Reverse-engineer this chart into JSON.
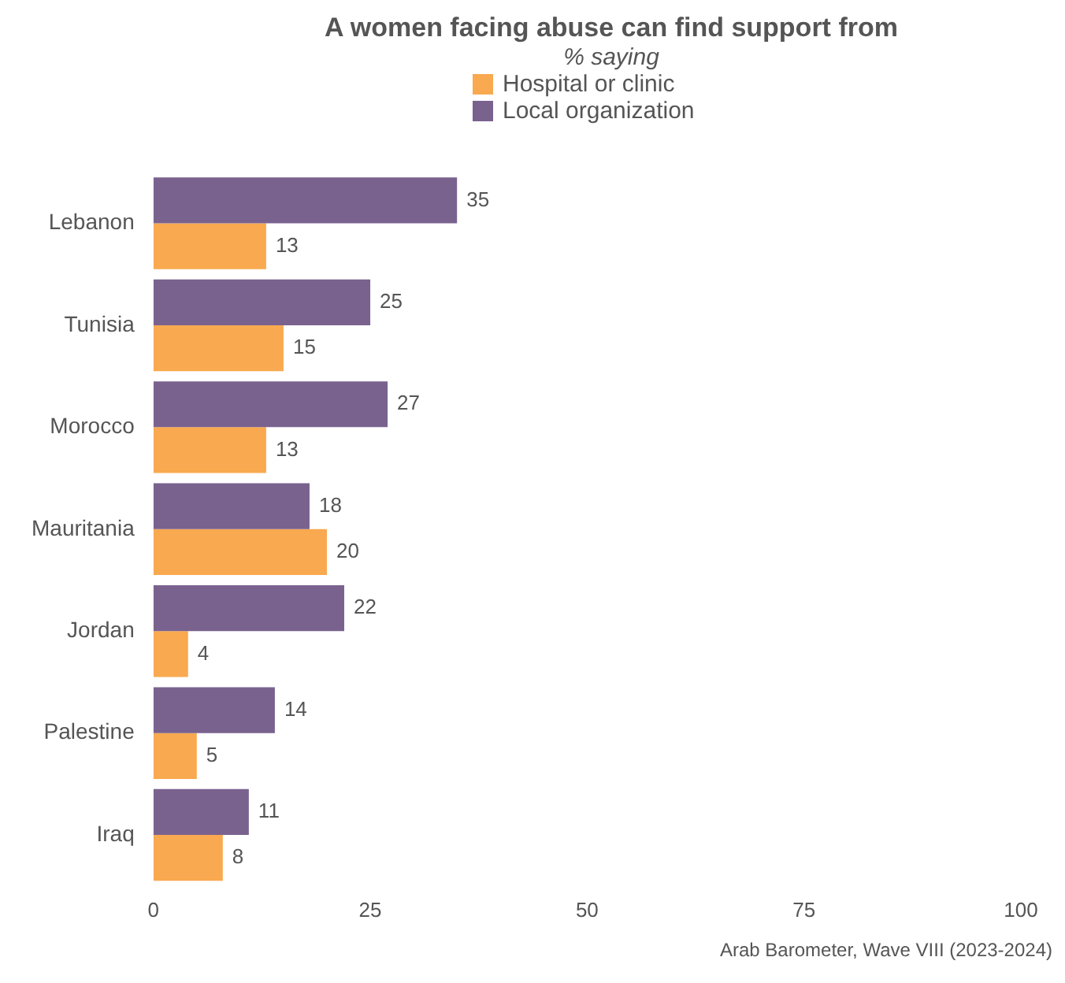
{
  "chart_data": {
    "type": "bar",
    "orientation": "horizontal",
    "title": "A women facing abuse can find support from",
    "subtitle": "% saying",
    "categories": [
      "Lebanon",
      "Tunisia",
      "Morocco",
      "Mauritania",
      "Jordan",
      "Palestine",
      "Iraq"
    ],
    "series": [
      {
        "name": "Hospital or clinic",
        "color": "#f9a94f",
        "values": [
          13,
          15,
          13,
          20,
          4,
          5,
          8
        ]
      },
      {
        "name": "Local organization",
        "color": "#7a628f",
        "values": [
          35,
          25,
          27,
          18,
          22,
          14,
          11
        ]
      }
    ],
    "xlim": [
      0,
      100
    ],
    "xticks": [
      0,
      25,
      50,
      75,
      100
    ],
    "grid": false,
    "legend": "top",
    "data_labels": true,
    "annotations": [
      "Arab Barometer, Wave VIII (2023-2024)"
    ]
  }
}
